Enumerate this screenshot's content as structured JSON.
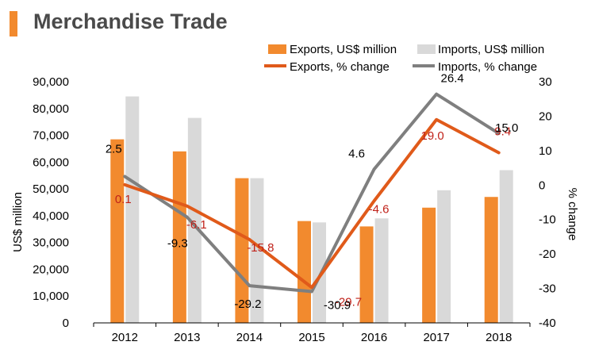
{
  "title": "Merchandise Trade",
  "colors": {
    "title_bar": "#f28a2e",
    "title_text": "#4a4a4a",
    "exports_bar": "#f28a2e",
    "imports_bar": "#d9d9d9",
    "exports_line": "#e05a1a",
    "imports_line": "#7f7f7f",
    "exports_label": "#c0221a",
    "imports_label": "#000000",
    "axis": "#000000"
  },
  "chart_data": {
    "type": "bar",
    "categories": [
      "2012",
      "2013",
      "2014",
      "2015",
      "2016",
      "2017",
      "2018"
    ],
    "series": [
      {
        "name": "Exports, US$ million",
        "kind": "bar",
        "axis": "left",
        "values": [
          68500,
          64000,
          54000,
          38000,
          36000,
          43000,
          47000
        ]
      },
      {
        "name": "Imports, US$ million",
        "kind": "bar",
        "axis": "left",
        "values": [
          84500,
          76500,
          54000,
          37500,
          39000,
          49500,
          57000
        ]
      },
      {
        "name": "Exports, % change",
        "kind": "line",
        "axis": "right",
        "values": [
          0.1,
          -6.1,
          -15.8,
          -29.7,
          -4.6,
          19.0,
          9.4
        ],
        "labels": [
          "0.1",
          "-6.1",
          "-15.8",
          "-29.7",
          "-4.6",
          "19.0",
          "9.4"
        ]
      },
      {
        "name": "Imports, % change",
        "kind": "line",
        "axis": "right",
        "values": [
          2.5,
          -9.3,
          -29.2,
          -30.9,
          4.6,
          26.4,
          15.0
        ],
        "labels": [
          "2.5",
          "-9.3",
          "-29.2",
          "-30.9",
          "4.6",
          "26.4",
          "15.0"
        ]
      }
    ],
    "ylabel": "US$ million",
    "ylim": [
      0,
      90000
    ],
    "yticks": [
      "0",
      "10,000",
      "20,000",
      "30,000",
      "40,000",
      "50,000",
      "60,000",
      "70,000",
      "80,000",
      "90,000"
    ],
    "y2label": "% change",
    "y2lim": [
      -40,
      30
    ],
    "y2ticks": [
      "-40",
      "-30",
      "-20",
      "-10",
      "0",
      "10",
      "20",
      "30"
    ],
    "legend": "top-right",
    "grid": false
  }
}
